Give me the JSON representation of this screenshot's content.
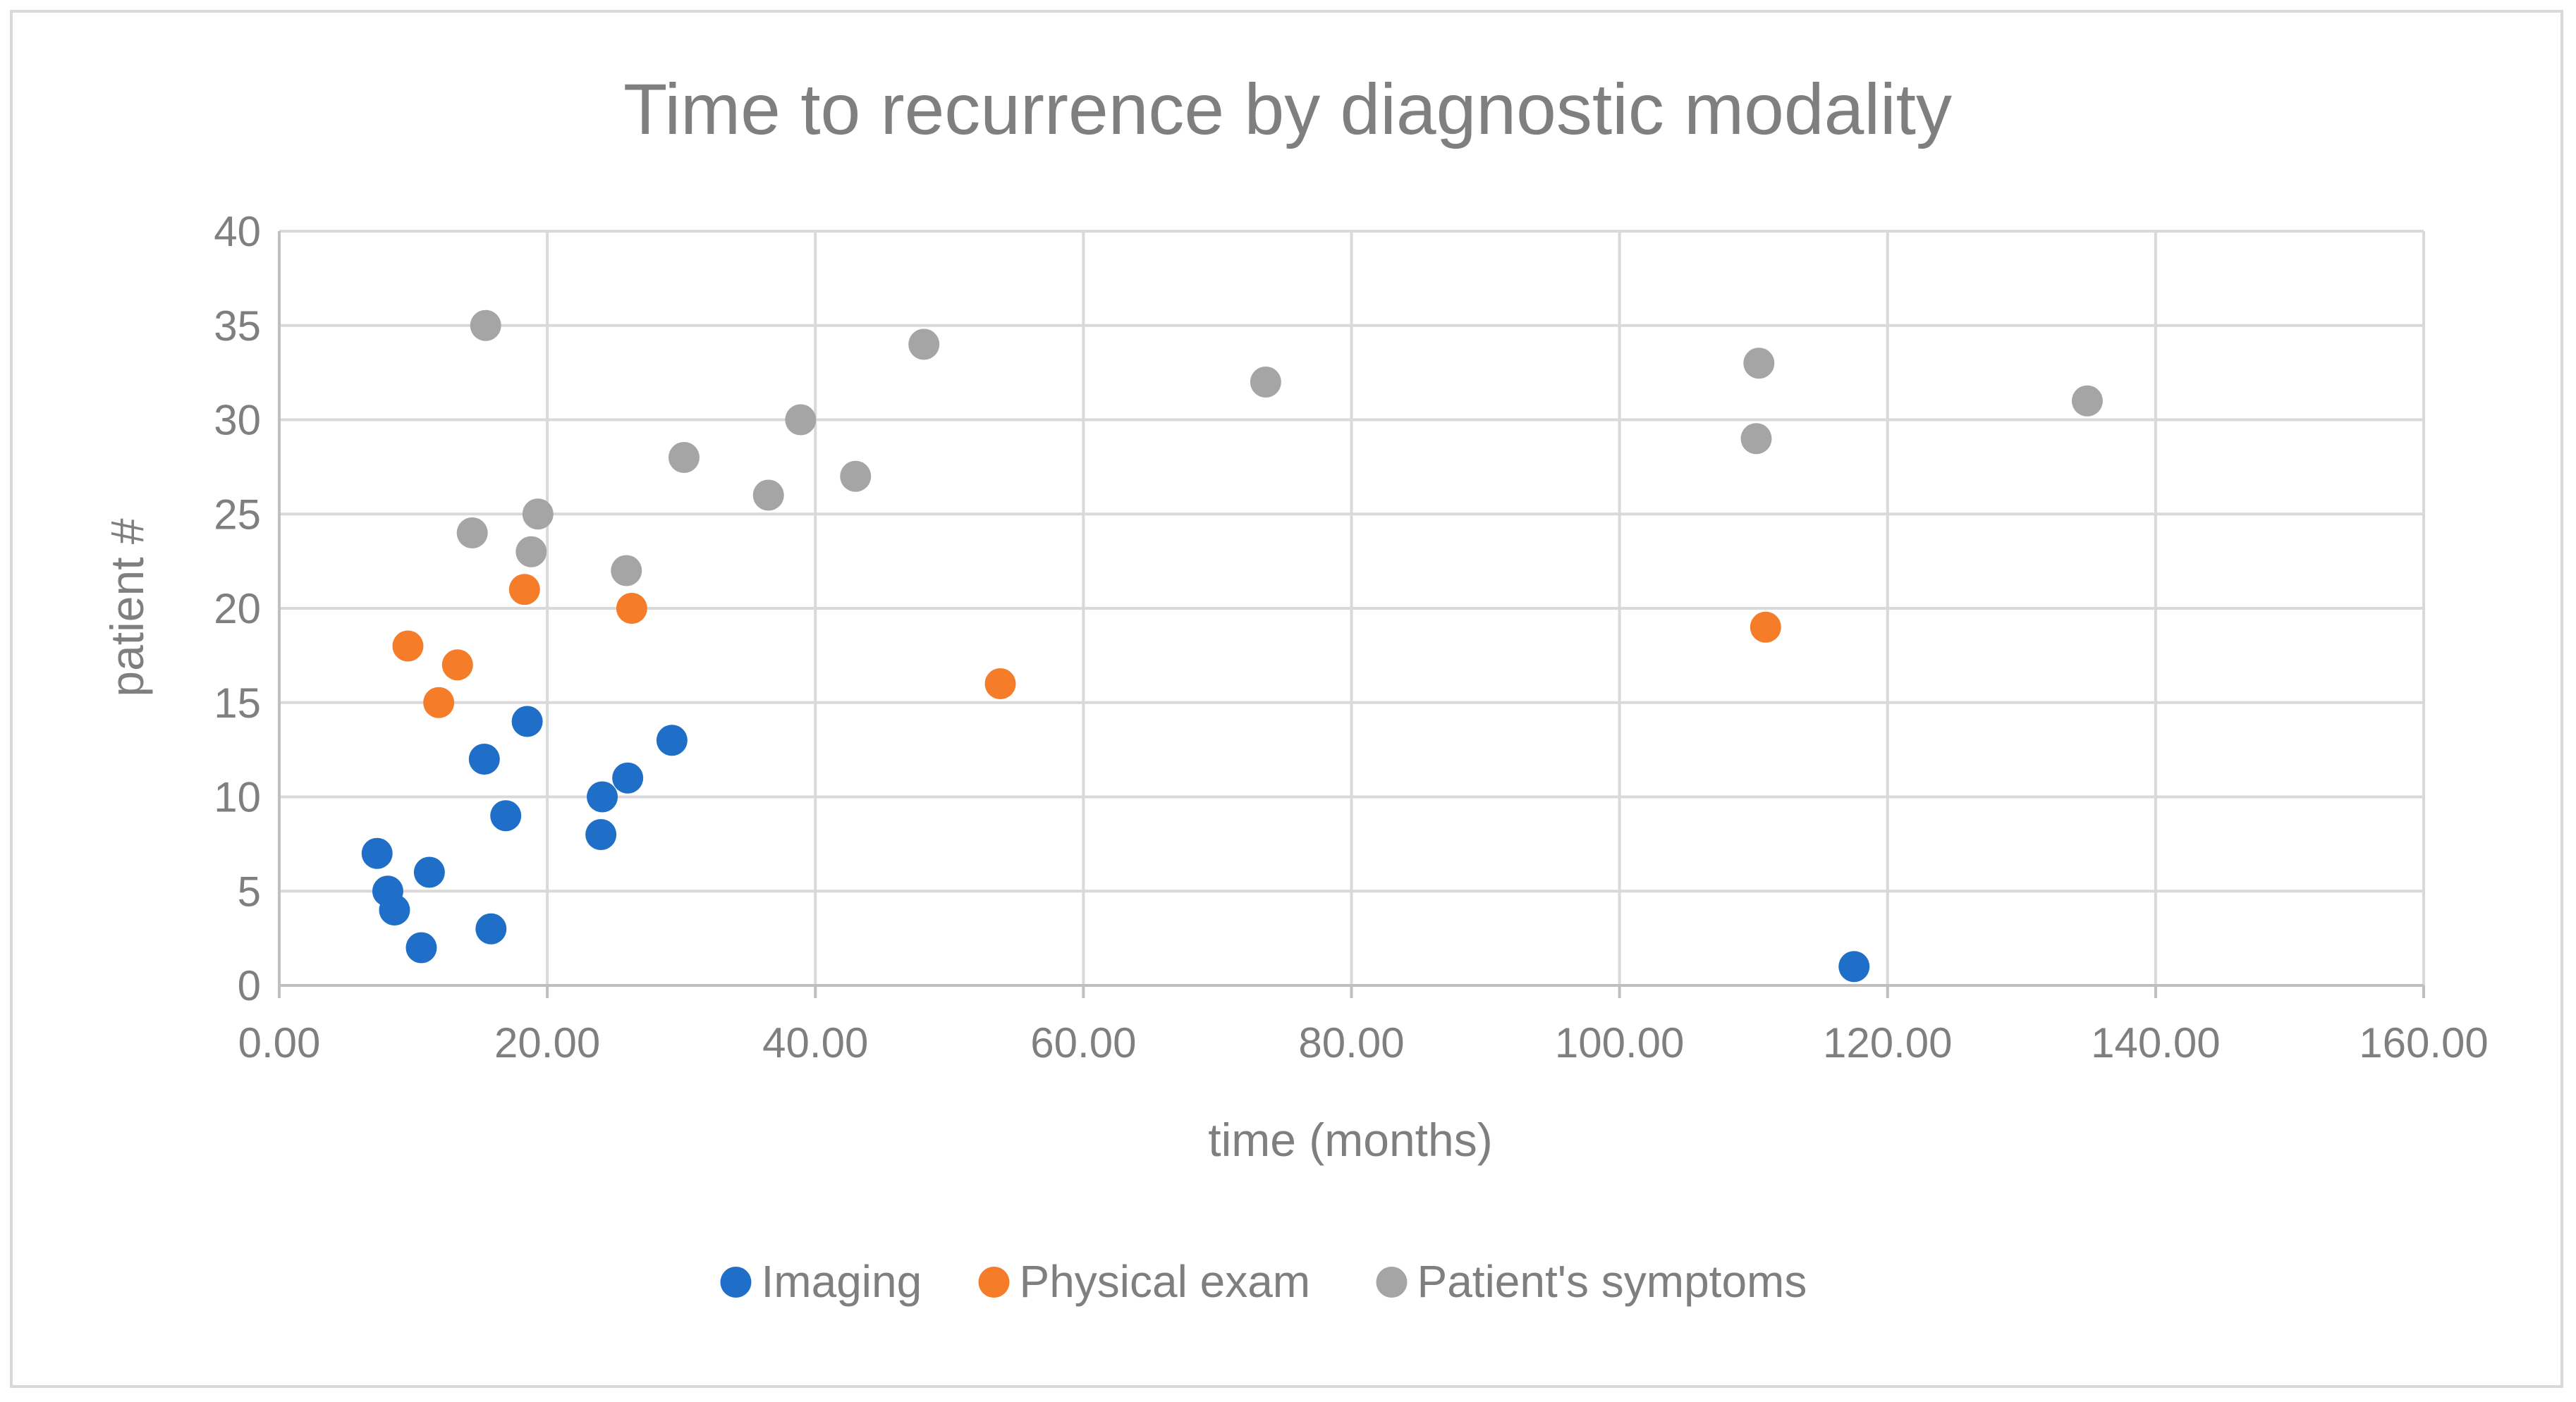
{
  "chart_data": {
    "type": "scatter",
    "title": "Time to recurrence by diagnostic modality",
    "xlabel": "time (months)",
    "ylabel": "patient #",
    "xlim": [
      0,
      160
    ],
    "ylim": [
      0,
      40
    ],
    "x_ticks": [
      0,
      20,
      40,
      60,
      80,
      100,
      120,
      140,
      160
    ],
    "x_tick_labels": [
      "0.00",
      "20.00",
      "40.00",
      "60.00",
      "80.00",
      "100.00",
      "120.00",
      "140.00",
      "160.00"
    ],
    "y_ticks": [
      0,
      5,
      10,
      15,
      20,
      25,
      30,
      35,
      40
    ],
    "y_tick_labels": [
      "0",
      "5",
      "10",
      "15",
      "20",
      "25",
      "30",
      "35",
      "40"
    ],
    "grid": true,
    "legend_position": "bottom",
    "series": [
      {
        "name": "Imaging",
        "color": "#1f6fc8",
        "points": [
          {
            "x": 117.5,
            "y": 1
          },
          {
            "x": 10.6,
            "y": 2
          },
          {
            "x": 15.8,
            "y": 3
          },
          {
            "x": 8.6,
            "y": 4
          },
          {
            "x": 8.1,
            "y": 5
          },
          {
            "x": 11.2,
            "y": 6
          },
          {
            "x": 7.3,
            "y": 7
          },
          {
            "x": 24.0,
            "y": 8
          },
          {
            "x": 16.9,
            "y": 9
          },
          {
            "x": 24.1,
            "y": 10
          },
          {
            "x": 26.0,
            "y": 11
          },
          {
            "x": 15.3,
            "y": 12
          },
          {
            "x": 29.3,
            "y": 13
          },
          {
            "x": 18.5,
            "y": 14
          }
        ]
      },
      {
        "name": "Physical exam",
        "color": "#f57d2a",
        "points": [
          {
            "x": 11.9,
            "y": 15
          },
          {
            "x": 53.8,
            "y": 16
          },
          {
            "x": 13.3,
            "y": 17
          },
          {
            "x": 9.6,
            "y": 18
          },
          {
            "x": 110.9,
            "y": 19
          },
          {
            "x": 26.3,
            "y": 20
          },
          {
            "x": 18.3,
            "y": 21
          }
        ]
      },
      {
        "name": "Patient's symptoms",
        "color": "#a5a5a5",
        "points": [
          {
            "x": 25.9,
            "y": 22
          },
          {
            "x": 18.8,
            "y": 23
          },
          {
            "x": 14.4,
            "y": 24
          },
          {
            "x": 19.3,
            "y": 25
          },
          {
            "x": 36.5,
            "y": 26
          },
          {
            "x": 43.0,
            "y": 27
          },
          {
            "x": 30.2,
            "y": 28
          },
          {
            "x": 110.2,
            "y": 29
          },
          {
            "x": 38.9,
            "y": 30
          },
          {
            "x": 134.9,
            "y": 31
          },
          {
            "x": 73.6,
            "y": 32
          },
          {
            "x": 110.4,
            "y": 33
          },
          {
            "x": 48.1,
            "y": 34
          },
          {
            "x": 15.4,
            "y": 35
          }
        ]
      }
    ]
  }
}
